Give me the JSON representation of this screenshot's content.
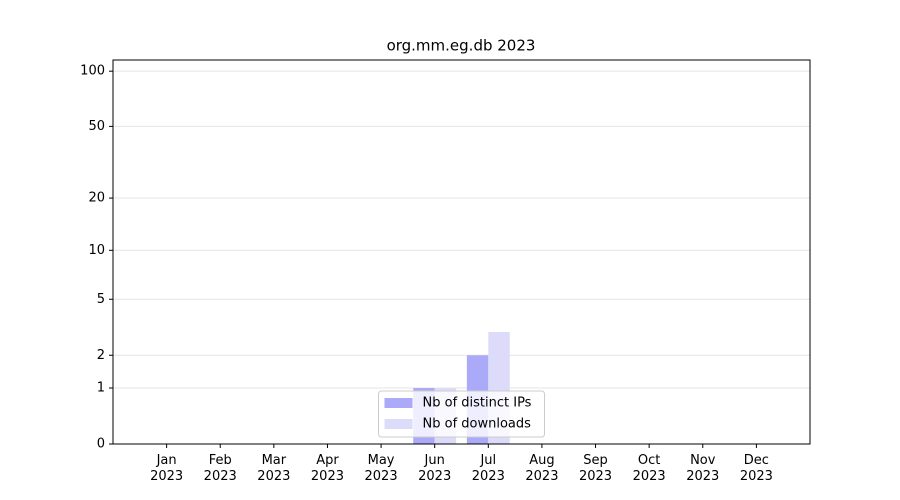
{
  "chart_data": {
    "type": "bar",
    "title": "org.mm.eg.db 2023",
    "categories": [
      "Jan\n2023",
      "Feb\n2023",
      "Mar\n2023",
      "Apr\n2023",
      "May\n2023",
      "Jun\n2023",
      "Jul\n2023",
      "Aug\n2023",
      "Sep\n2023",
      "Oct\n2023",
      "Nov\n2023",
      "Dec\n2023"
    ],
    "series": [
      {
        "name": "Nb of distinct IPs",
        "color": "#aaaaf8",
        "values": [
          0,
          0,
          0,
          0,
          0,
          1,
          2,
          0,
          0,
          0,
          0,
          0
        ]
      },
      {
        "name": "Nb of downloads",
        "color": "#dcdcfa",
        "values": [
          0,
          0,
          0,
          0,
          0,
          1,
          3,
          0,
          0,
          0,
          0,
          0
        ]
      }
    ],
    "y_scale": "log1p",
    "ylim": [
      0,
      115
    ],
    "yticks": [
      0,
      1,
      2,
      5,
      10,
      20,
      50,
      100
    ],
    "grid": true,
    "legend": "lower center"
  }
}
